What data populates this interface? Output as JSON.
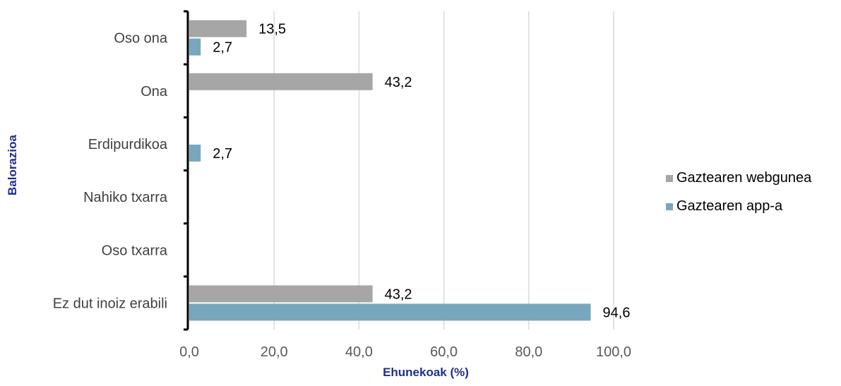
{
  "chart_data": {
    "type": "bar",
    "orientation": "horizontal",
    "categories": [
      "Oso ona",
      "Ona",
      "Erdipurdikoa",
      "Nahiko txarra",
      "Oso txarra",
      "Ez dut inoiz erabili"
    ],
    "series": [
      {
        "name": "Gaztearen webgunea",
        "color": "#a6a6a6",
        "values": [
          13.5,
          43.2,
          null,
          null,
          null,
          43.2
        ],
        "labels": [
          "13,5",
          "43,2",
          "",
          "",
          "",
          "43,2"
        ]
      },
      {
        "name": "Gaztearen app-a",
        "color": "#78a7bd",
        "values": [
          2.7,
          null,
          2.7,
          null,
          null,
          94.6
        ],
        "labels": [
          "2,7",
          "",
          "2,7",
          "",
          "",
          "94,6"
        ]
      }
    ],
    "xlim": [
      0,
      100
    ],
    "xticks": [
      0,
      20,
      40,
      60,
      80,
      100
    ],
    "xtick_labels": [
      "0,0",
      "20,0",
      "40,0",
      "60,0",
      "80,0",
      "100,0"
    ],
    "xlabel": "Ehunekoak (%)",
    "ylabel": "Balorazioa",
    "grid": true,
    "legend_position": "right"
  }
}
